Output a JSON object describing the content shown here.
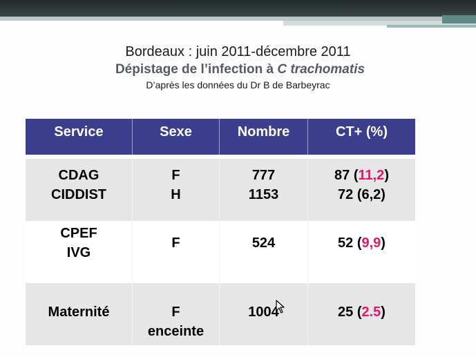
{
  "slide": {
    "title_line1": "Bordeaux : juin 2011-décembre 2011",
    "title_line2_prefix": "Dépistage de l’infection à ",
    "title_line2_italic": "C trachomatis",
    "title_line3": "D’après les données du Dr B de Barbeyrac"
  },
  "table": {
    "headers": [
      "Service",
      "Sexe",
      "Nombre",
      "CT+ (%)"
    ],
    "rows": [
      {
        "service": [
          "CDAG",
          "CIDDIST"
        ],
        "sexe": [
          "F",
          "H"
        ],
        "nombre": [
          "777",
          "1153"
        ],
        "ct": [
          {
            "count": "87",
            "open": " (",
            "pct": "11,2",
            "close": ")",
            "pct_highlight": true
          },
          {
            "count": "72",
            "open": " (",
            "pct": "6,2",
            "close": ")",
            "pct_highlight": false
          }
        ]
      },
      {
        "service": [
          "CPEF",
          "IVG"
        ],
        "sexe": [
          "F"
        ],
        "nombre": [
          "524"
        ],
        "ct": [
          {
            "count": "52",
            "open": " (",
            "pct": "9,9",
            "close": ")",
            "pct_highlight": true
          }
        ]
      },
      {
        "service": [
          "Maternité"
        ],
        "sexe": [
          "F",
          "enceinte"
        ],
        "nombre": [
          "1004"
        ],
        "ct": [
          {
            "count": "25",
            "open": " (",
            "pct": "2.5",
            "close": ")",
            "pct_highlight": true
          }
        ]
      }
    ]
  },
  "colors": {
    "header_bg": "#3a3e8c",
    "highlight": "#e0186a"
  }
}
